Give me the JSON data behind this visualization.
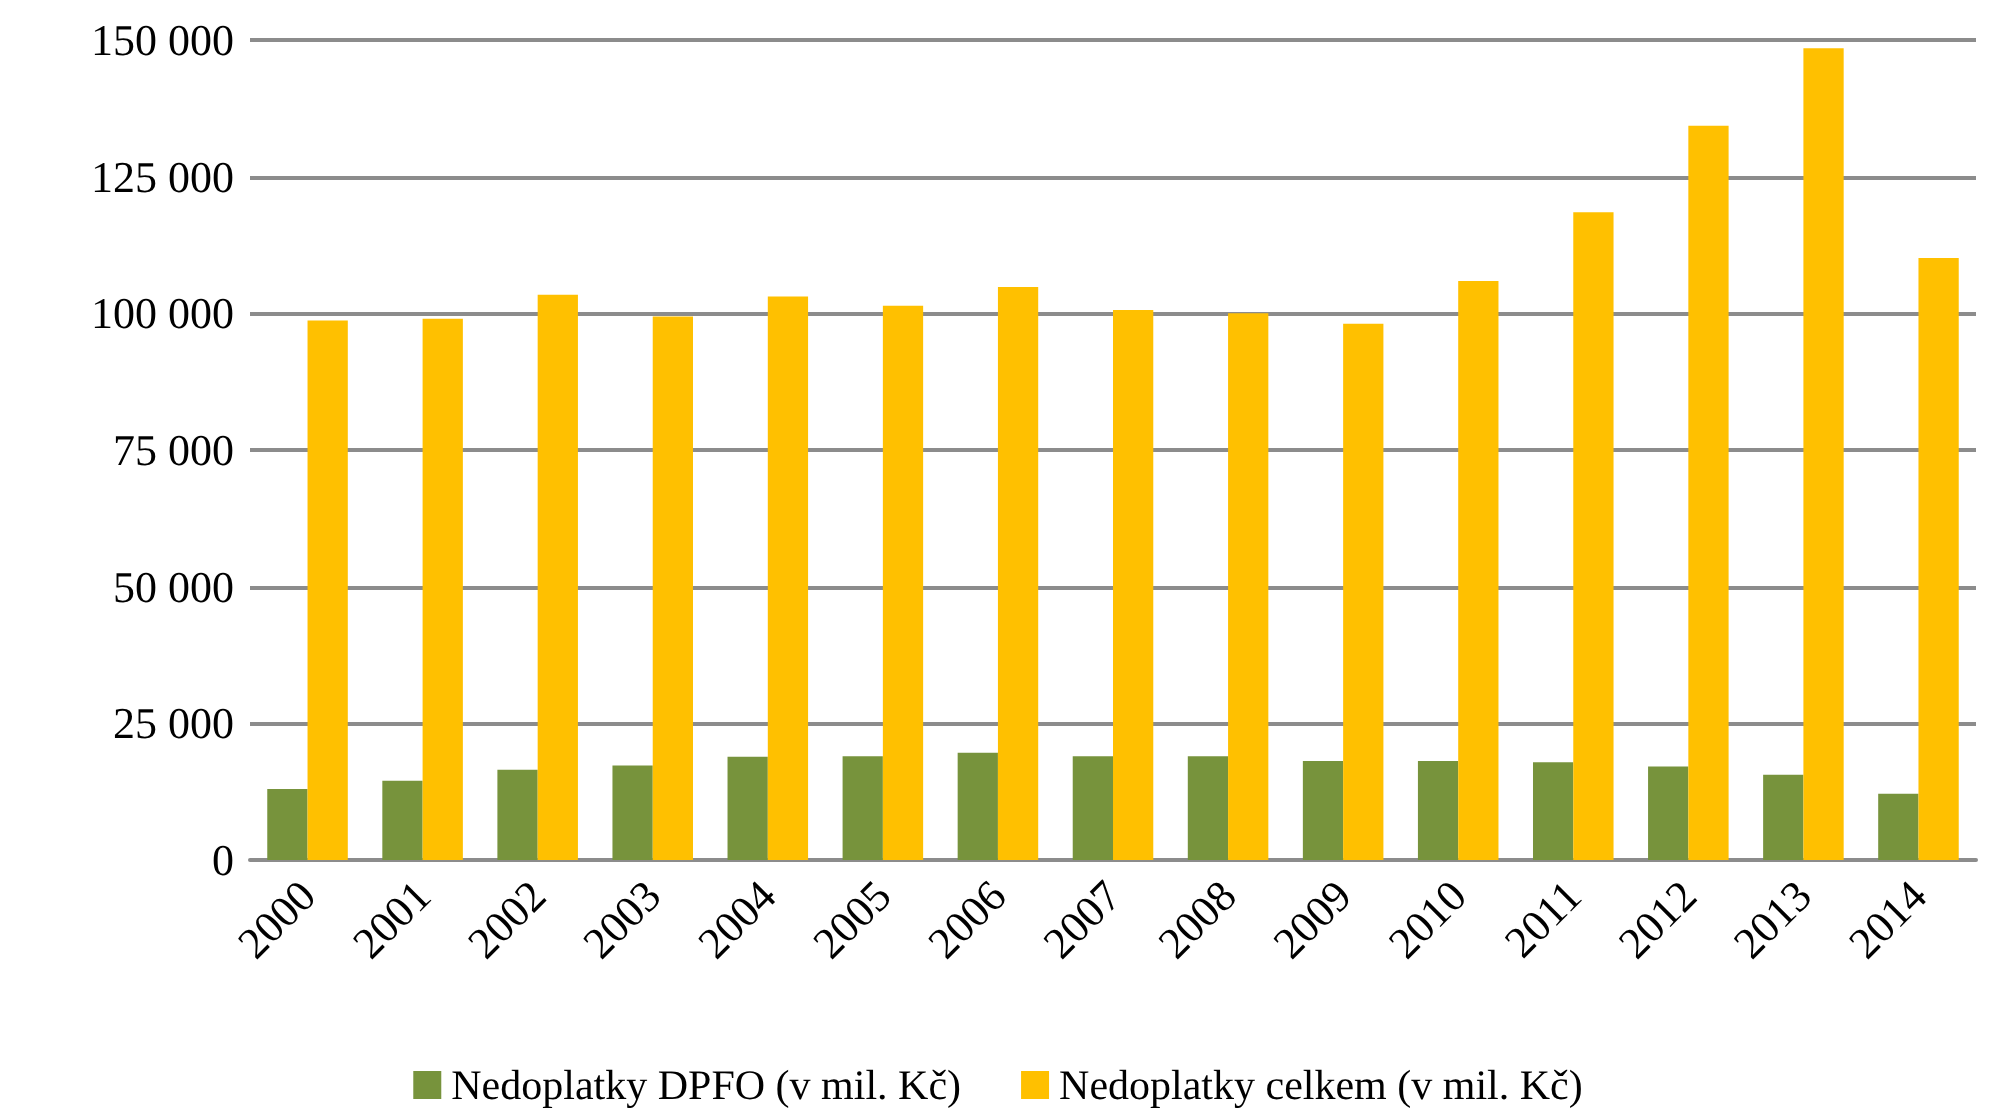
{
  "chart_data": {
    "type": "bar",
    "categories": [
      "2000",
      "2001",
      "2002",
      "2003",
      "2004",
      "2005",
      "2006",
      "2007",
      "2008",
      "2009",
      "2010",
      "2011",
      "2012",
      "2013",
      "2014"
    ],
    "series": [
      {
        "name": "Nedoplatky DPFO (v mil. Kč)",
        "color": "#77933c",
        "values": [
          13000,
          14500,
          16500,
          17300,
          18900,
          19000,
          19600,
          19000,
          19000,
          18100,
          18100,
          17900,
          17100,
          15600,
          12100
        ]
      },
      {
        "name": "Nedoplatky celkem (v mil. Kč)",
        "color": "#ffc000",
        "values": [
          98700,
          99000,
          103400,
          99400,
          103100,
          101400,
          104800,
          100600,
          100000,
          98100,
          105900,
          118500,
          134300,
          148500,
          110100
        ]
      }
    ],
    "ylim": [
      0,
      150000
    ],
    "yticks": [
      0,
      25000,
      50000,
      75000,
      100000,
      125000,
      150000
    ],
    "grid": "y",
    "legend": "bottom"
  }
}
